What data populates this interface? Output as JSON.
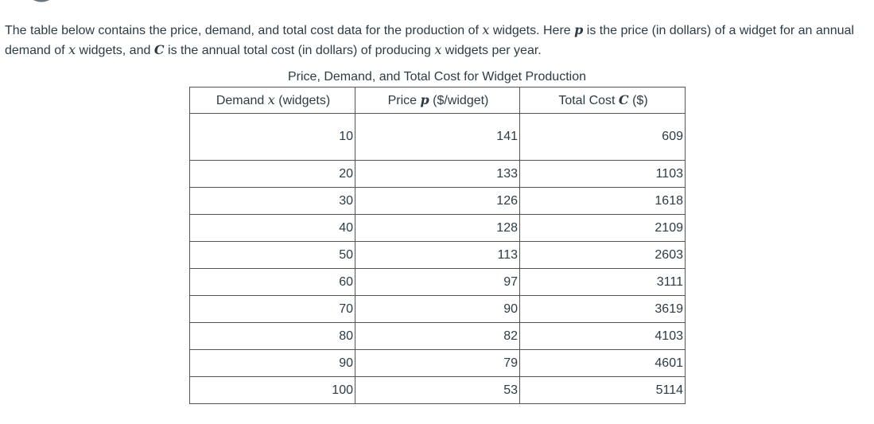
{
  "intro": {
    "part1": "The table below contains the price, demand, and total cost data for the production of ",
    "var_x": "x",
    "part2": " widgets.  Here ",
    "var_p": "p",
    "part3": " is the price (in dollars) of a widget for an annual demand of ",
    "var_x2": "x",
    "part4": " widgets, and ",
    "var_c": "C",
    "part5": " is the annual total cost (in dollars) of producing ",
    "var_x3": "x",
    "part6": " widgets per year."
  },
  "table": {
    "caption": "Price, Demand, and Total Cost for Widget Production",
    "headers": {
      "demand_prefix": "Demand ",
      "demand_var": "x",
      "demand_suffix": " (widgets)",
      "price_prefix": "Price ",
      "price_var": "p",
      "price_suffix": " ($/widget)",
      "cost_prefix": "Total Cost ",
      "cost_var": "C",
      "cost_suffix": " ($)"
    },
    "rows": [
      {
        "demand": "10",
        "price": "141",
        "cost": "609"
      },
      {
        "demand": "20",
        "price": "133",
        "cost": "1103"
      },
      {
        "demand": "30",
        "price": "126",
        "cost": "1618"
      },
      {
        "demand": "40",
        "price": "128",
        "cost": "2109"
      },
      {
        "demand": "50",
        "price": "113",
        "cost": "2603"
      },
      {
        "demand": "60",
        "price": "97",
        "cost": "3111"
      },
      {
        "demand": "70",
        "price": "90",
        "cost": "3619"
      },
      {
        "demand": "80",
        "price": "82",
        "cost": "4103"
      },
      {
        "demand": "90",
        "price": "79",
        "cost": "4601"
      },
      {
        "demand": "100",
        "price": "53",
        "cost": "5114"
      }
    ]
  }
}
